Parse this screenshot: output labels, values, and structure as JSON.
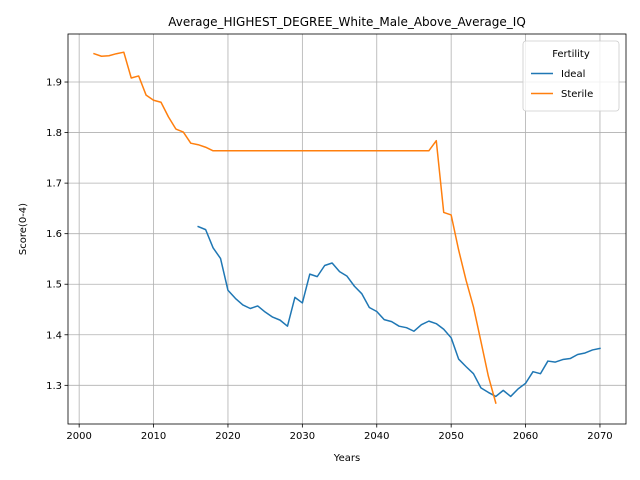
{
  "chart_data": {
    "type": "line",
    "title": "Average_HIGHEST_DEGREE_White_Male_Above_Average_IQ",
    "xlabel": "Years",
    "ylabel": "Score(0-4)",
    "xlim": [
      1998.5,
      2073.5
    ],
    "ylim": [
      1.2235,
      1.995
    ],
    "xticks": [
      2000,
      2010,
      2020,
      2030,
      2040,
      2050,
      2060,
      2070
    ],
    "xtick_labels": [
      "2000",
      "2010",
      "2020",
      "2030",
      "2040",
      "2050",
      "2060",
      "2070"
    ],
    "yticks": [
      1.3,
      1.4,
      1.5,
      1.6,
      1.7,
      1.8,
      1.9
    ],
    "ytick_labels": [
      "1.3",
      "1.4",
      "1.5",
      "1.6",
      "1.7",
      "1.8",
      "1.9"
    ],
    "grid": true,
    "legend": {
      "title": "Fertility",
      "placement": "top-right"
    },
    "series": [
      {
        "name": "Ideal",
        "color": "#1f77b4",
        "x": [
          2016,
          2017,
          2018,
          2019,
          2020,
          2021,
          2022,
          2023,
          2024,
          2025,
          2026,
          2027,
          2028,
          2029,
          2030,
          2031,
          2032,
          2033,
          2034,
          2035,
          2036,
          2037,
          2038,
          2039,
          2040,
          2041,
          2042,
          2043,
          2044,
          2045,
          2046,
          2047,
          2048,
          2049,
          2050,
          2051,
          2052,
          2053,
          2054,
          2055,
          2056,
          2057,
          2058,
          2059,
          2060,
          2061,
          2062,
          2063,
          2064,
          2065,
          2066,
          2067,
          2068,
          2069,
          2070
        ],
        "y": [
          1.614,
          1.608,
          1.572,
          1.551,
          1.488,
          1.472,
          1.459,
          1.452,
          1.457,
          1.445,
          1.435,
          1.429,
          1.417,
          1.474,
          1.463,
          1.52,
          1.515,
          1.537,
          1.542,
          1.525,
          1.516,
          1.496,
          1.481,
          1.454,
          1.446,
          1.43,
          1.426,
          1.417,
          1.414,
          1.407,
          1.42,
          1.427,
          1.422,
          1.411,
          1.394,
          1.352,
          1.337,
          1.323,
          1.295,
          1.286,
          1.278,
          1.29,
          1.278,
          1.293,
          1.304,
          1.327,
          1.323,
          1.348,
          1.346,
          1.351,
          1.353,
          1.361,
          1.364,
          1.37,
          1.373
        ]
      },
      {
        "name": "Sterile",
        "color": "#ff7f0e",
        "x": [
          2002,
          2003,
          2004,
          2005,
          2006,
          2007,
          2008,
          2009,
          2010,
          2011,
          2012,
          2013,
          2014,
          2015,
          2016,
          2017,
          2018,
          2019,
          2020,
          2021,
          2022,
          2023,
          2024,
          2025,
          2026,
          2027,
          2028,
          2029,
          2030,
          2031,
          2032,
          2033,
          2034,
          2035,
          2036,
          2037,
          2038,
          2039,
          2040,
          2041,
          2042,
          2043,
          2044,
          2045,
          2046,
          2047,
          2048,
          2049,
          2050,
          2051,
          2052,
          2053,
          2054,
          2055,
          2056
        ],
        "y": [
          1.956,
          1.951,
          1.952,
          1.956,
          1.959,
          1.908,
          1.912,
          1.874,
          1.864,
          1.86,
          1.831,
          1.807,
          1.801,
          1.779,
          1.776,
          1.771,
          1.764,
          1.764,
          1.764,
          1.764,
          1.764,
          1.764,
          1.764,
          1.764,
          1.764,
          1.764,
          1.764,
          1.764,
          1.764,
          1.764,
          1.764,
          1.764,
          1.764,
          1.764,
          1.764,
          1.764,
          1.764,
          1.764,
          1.764,
          1.764,
          1.764,
          1.764,
          1.764,
          1.764,
          1.764,
          1.764,
          1.784,
          1.642,
          1.637,
          1.568,
          1.508,
          1.455,
          1.387,
          1.318,
          1.265
        ]
      }
    ]
  }
}
